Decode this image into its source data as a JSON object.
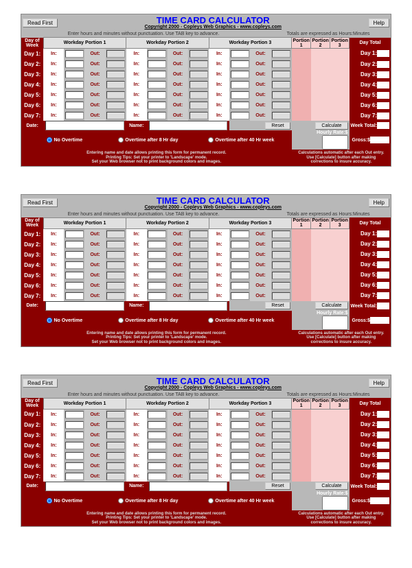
{
  "title": "TIME CARD CALCULATOR",
  "subtitle": "Copyright 2000 - Copleys Web Graphics - www.copleys.com",
  "buttons": {
    "readfirst": "Read First",
    "help": "Help",
    "reset": "Reset",
    "calculate": "Calculate"
  },
  "hints": {
    "left": "Enter hours and minutes without punctuation. Use TAB key to advance.",
    "right": "Totals are expressed as Hours:Minutes"
  },
  "headers": {
    "dow": "Day of Week",
    "wp1": "Workday Portion 1",
    "wp2": "Workday Portion 2",
    "wp3": "Workday Portion 3",
    "p1": "Portion 1",
    "p2": "Portion 2",
    "p3": "Portion 3",
    "dt": "Day Total",
    "in": "In:",
    "out": "Out:"
  },
  "days": [
    "Day 1:",
    "Day 2:",
    "Day 3:",
    "Day 4:",
    "Day 5:",
    "Day 6:",
    "Day 7:"
  ],
  "labels": {
    "date": "Date:",
    "name": "Name:",
    "weektotal": "Week Total:",
    "hourlyrate": "Hourly Rate:$",
    "gross": "Gross:$"
  },
  "overtime": {
    "none": "No Overtime",
    "after8": "Overtime after 8 Hr day",
    "after40": "Overtime after 40 Hr week"
  },
  "footnotes": {
    "left": "Entering name and date allows printing this form for permanent record.\nPrinting Tips: Set your printer to 'Landscape' mode.\nSet your Web browser not to print background colors and images.",
    "right": "Calculations automatic after each Out entry.\nUse [Calculate] button after making\ncorrections to insure accuracy."
  },
  "colors": {
    "darkred": "#8a0000",
    "lightpink": "#f8d0d0",
    "pink": "#f0b0b0",
    "gray": "#b8b8b8"
  }
}
